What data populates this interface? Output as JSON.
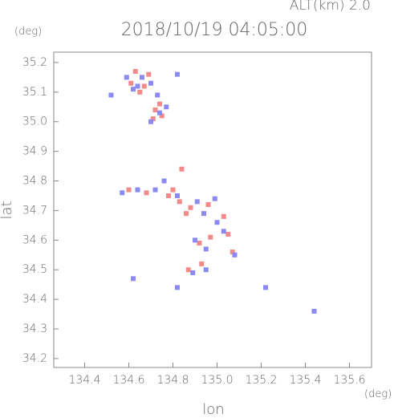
{
  "chart_data": {
    "type": "scatter",
    "title": "2018/10/19 04:05:00",
    "subtitle": "ALT(km) 2.0",
    "x_label": "lon",
    "y_label": "lat",
    "x_unit": "(deg)",
    "y_unit": "(deg)",
    "xlim": [
      134.26,
      135.7
    ],
    "ylim": [
      34.17,
      35.235
    ],
    "xticks": [
      134.4,
      134.6,
      134.8,
      {
        "value": 135.0,
        "label": "135.0"
      },
      135.2,
      135.4,
      135.6
    ],
    "yticks": [
      34.2,
      34.3,
      34.4,
      34.5,
      34.6,
      34.7,
      34.8,
      34.9,
      {
        "value": 35.0,
        "label": "35.0"
      },
      35.1,
      35.2
    ],
    "series": [
      {
        "color": "#f28a8a",
        "x": [
          134.63,
          134.67,
          134.65,
          134.69,
          134.61,
          134.72,
          134.75,
          134.71,
          134.84,
          134.6,
          134.68,
          134.78,
          134.83,
          134.88,
          134.96,
          135.03,
          135.05,
          134.92,
          134.97,
          134.87,
          134.93,
          135.07,
          134.8,
          134.86,
          134.74
        ],
        "y": [
          35.17,
          35.12,
          35.1,
          35.16,
          35.13,
          35.04,
          35.02,
          35.01,
          34.84,
          34.77,
          34.76,
          34.75,
          34.73,
          34.71,
          34.72,
          34.68,
          34.62,
          34.59,
          34.61,
          34.5,
          34.52,
          34.56,
          34.77,
          34.69,
          35.06
        ]
      },
      {
        "color": "#8a8af2",
        "x": [
          134.59,
          134.66,
          134.64,
          134.7,
          134.62,
          134.52,
          134.74,
          134.77,
          134.7,
          134.57,
          134.64,
          134.72,
          134.76,
          134.82,
          134.91,
          134.99,
          134.94,
          135.0,
          135.03,
          134.95,
          134.9,
          134.89,
          134.95,
          135.08,
          134.62,
          135.44,
          134.82,
          135.22,
          134.82,
          134.73
        ],
        "y": [
          35.15,
          35.15,
          35.12,
          35.13,
          35.11,
          35.09,
          35.03,
          35.05,
          35.0,
          34.76,
          34.77,
          34.77,
          34.8,
          34.75,
          34.73,
          34.74,
          34.69,
          34.66,
          34.63,
          34.57,
          34.6,
          34.49,
          34.5,
          34.55,
          34.47,
          34.36,
          34.44,
          34.44,
          35.16,
          35.09
        ]
      }
    ]
  }
}
